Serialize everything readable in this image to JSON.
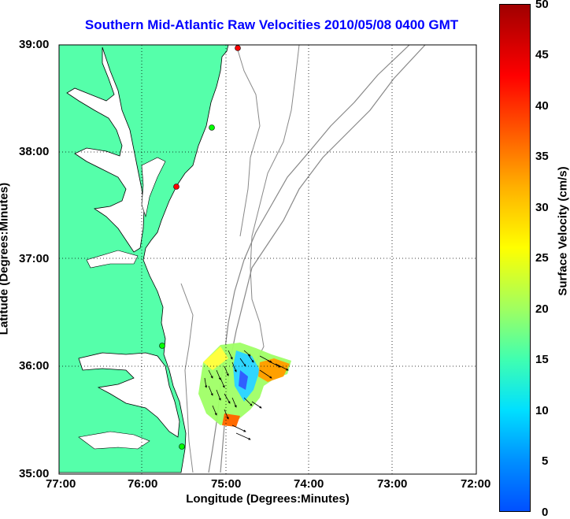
{
  "title": "Southern Mid-Atlantic Raw Velocities 2010/05/08 0400 GMT",
  "xlabel": "Longitude (Degrees:Minutes)",
  "ylabel": "Latitude (Degrees:Minutes)",
  "colorbar_label": "Surface Velocity (cm/s)",
  "x_ticks": [
    "77:00",
    "76:00",
    "75:00",
    "74:00",
    "73:00",
    "72:00"
  ],
  "y_ticks": [
    "39:00",
    "38:00",
    "37:00",
    "36:00",
    "35:00"
  ],
  "colorbar_ticks": [
    "50",
    "45",
    "40",
    "35",
    "30",
    "25",
    "20",
    "15",
    "10",
    "5",
    "0"
  ],
  "colors": {
    "land": "#55ffaa",
    "title": "#0000ff",
    "bathymetry": "#888888"
  }
}
